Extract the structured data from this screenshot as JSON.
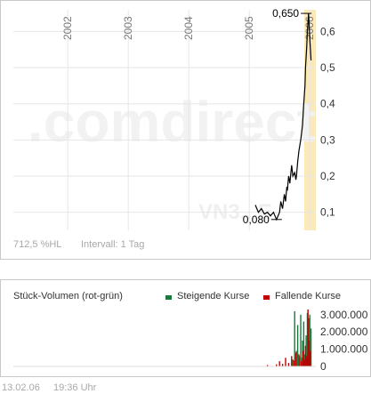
{
  "price_footer": {
    "leverage": "712,5 %HL",
    "interval": "Intervall: 1 Tag"
  },
  "watermark": {
    "brand": ".comdirect",
    "code": "VN3...E"
  },
  "volume_chart": {
    "title": "Stück-Volumen (rot-grün)",
    "legend": [
      {
        "label": "Steigende Kurse",
        "color": "#1a7a3a"
      },
      {
        "label": "Fallende Kurse",
        "color": "#c00000"
      }
    ]
  },
  "timestamp": {
    "date": "13.02.06",
    "time": "19:36 Uhr"
  },
  "colors": {
    "highlight": "#fbe9b8",
    "price_line": "#000000",
    "grid": "#e6e6e6"
  },
  "chart_data": [
    {
      "type": "line",
      "title": "",
      "x_ticks": [
        "2002",
        "2003",
        "2004",
        "2005",
        "2006"
      ],
      "x_tick_years": [
        2002,
        2003,
        2004,
        2005,
        2006
      ],
      "x_range": [
        2001.1,
        2006.1
      ],
      "y_ticks": [
        "0,1",
        "0,2",
        "0,3",
        "0,4",
        "0,5",
        "0,6"
      ],
      "y_tick_values": [
        0.1,
        0.2,
        0.3,
        0.4,
        0.5,
        0.6
      ],
      "ylim": [
        0.05,
        0.66
      ],
      "grid": true,
      "annotations": [
        {
          "label": "0,650",
          "year": 2005.94,
          "value": 0.65
        },
        {
          "label": "0,080",
          "year": 2005.45,
          "value": 0.08
        }
      ],
      "series": [
        {
          "x": [
            2005.1,
            2005.15,
            2005.2,
            2005.25,
            2005.3,
            2005.35,
            2005.4,
            2005.45,
            2005.5,
            2005.52,
            2005.55,
            2005.58,
            2005.6,
            2005.62,
            2005.63,
            2005.65,
            2005.67,
            2005.7,
            2005.72,
            2005.75,
            2005.77,
            2005.78,
            2005.8,
            2005.82,
            2005.85,
            2005.88,
            2005.9,
            2005.92,
            2005.93,
            2005.95,
            2005.96,
            2005.98,
            2006.0,
            2006.02
          ],
          "y": [
            0.12,
            0.1,
            0.11,
            0.095,
            0.1,
            0.09,
            0.1,
            0.08,
            0.1,
            0.13,
            0.11,
            0.15,
            0.13,
            0.17,
            0.16,
            0.2,
            0.18,
            0.23,
            0.2,
            0.21,
            0.19,
            0.2,
            0.24,
            0.27,
            0.3,
            0.34,
            0.4,
            0.45,
            0.5,
            0.56,
            0.6,
            0.65,
            0.58,
            0.52
          ]
        }
      ]
    },
    {
      "type": "bar",
      "title": "Stück-Volumen (rot-grün)",
      "y_ticks": [
        "3.000.000",
        "2.000.000",
        "1.000.000",
        "0"
      ],
      "y_tick_values": [
        3000000,
        2000000,
        1000000,
        0
      ],
      "ylim": [
        0,
        3300000
      ],
      "x_range": [
        2001.1,
        2006.1
      ],
      "series": [
        {
          "name": "Steigende Kurse",
          "color": "#1a7a3a",
          "x": [
            2005.72,
            2005.75,
            2005.78,
            2005.8,
            2005.83,
            2005.85,
            2005.87,
            2005.88,
            2005.9,
            2005.92,
            2005.94,
            2005.96,
            2005.98,
            2006.0,
            2006.02
          ],
          "values": [
            400000,
            3200000,
            900000,
            2400000,
            600000,
            3000000,
            500000,
            1500000,
            2600000,
            700000,
            1800000,
            3100000,
            2800000,
            3000000,
            2200000
          ]
        },
        {
          "name": "Fallende Kurse",
          "color": "#c00000",
          "x": [
            2005.3,
            2005.45,
            2005.5,
            2005.55,
            2005.6,
            2005.65,
            2005.7,
            2005.74,
            2005.77,
            2005.82,
            2005.86,
            2005.89,
            2005.91,
            2005.93,
            2005.95,
            2005.97,
            2005.99,
            2006.01
          ],
          "values": [
            80000,
            120000,
            300000,
            150000,
            500000,
            200000,
            600000,
            350000,
            800000,
            700000,
            300000,
            900000,
            400000,
            1200000,
            600000,
            3300000,
            1500000,
            900000
          ]
        }
      ]
    }
  ]
}
